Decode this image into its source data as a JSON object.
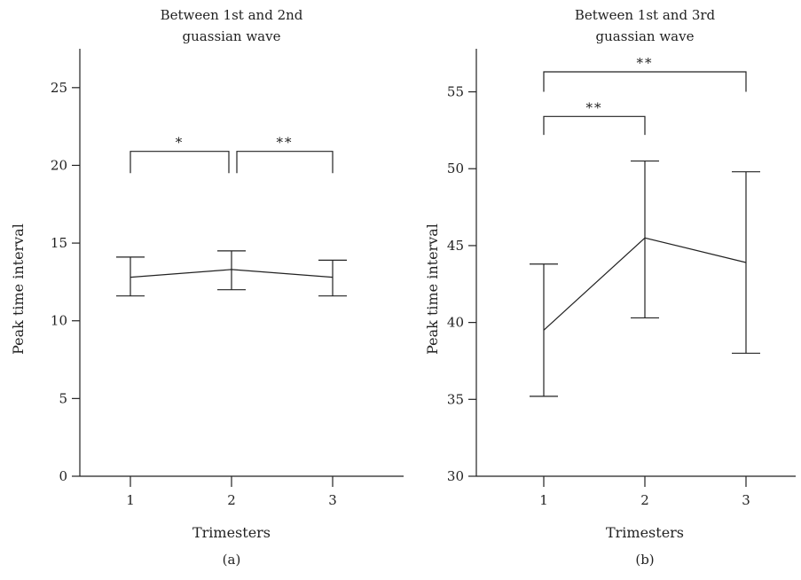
{
  "chart_data": [
    {
      "type": "line",
      "panel_label": "(a)",
      "title_lines": [
        "Between 1st and 2nd",
        "guassian wave"
      ],
      "xlabel": "Trimesters",
      "ylabel": "Peak time interval",
      "categories": [
        "1",
        "2",
        "3"
      ],
      "series": [
        {
          "values": [
            12.8,
            13.3,
            12.8
          ],
          "error_low": [
            11.6,
            12.0,
            11.6
          ],
          "error_high": [
            14.1,
            14.5,
            13.9
          ]
        }
      ],
      "ylim": [
        0,
        27.5
      ],
      "yticks": [
        0,
        5,
        10,
        15,
        20,
        25
      ],
      "significance": [
        {
          "from": "1",
          "to": "2",
          "label": "*",
          "y": 20.9,
          "base": 19.5
        },
        {
          "from": "2",
          "to": "3",
          "label": "**",
          "y": 20.9,
          "base": 19.5
        }
      ],
      "grid": false
    },
    {
      "type": "line",
      "panel_label": "(b)",
      "title_lines": [
        "Between 1st and 3rd",
        "guassian wave"
      ],
      "xlabel": "Trimesters",
      "ylabel": "Peak time interval",
      "categories": [
        "1",
        "2",
        "3"
      ],
      "series": [
        {
          "values": [
            39.5,
            45.5,
            43.9
          ],
          "error_low": [
            35.2,
            40.3,
            38.0
          ],
          "error_high": [
            43.8,
            50.5,
            49.8
          ]
        }
      ],
      "ylim": [
        30,
        57.8
      ],
      "yticks": [
        30,
        35,
        40,
        45,
        50,
        55
      ],
      "significance": [
        {
          "from": "1",
          "to": "3",
          "label": "**",
          "y": 56.3,
          "base": 55.0
        },
        {
          "from": "1",
          "to": "2",
          "label": "**",
          "y": 53.4,
          "base": 52.2
        }
      ],
      "grid": false
    }
  ]
}
